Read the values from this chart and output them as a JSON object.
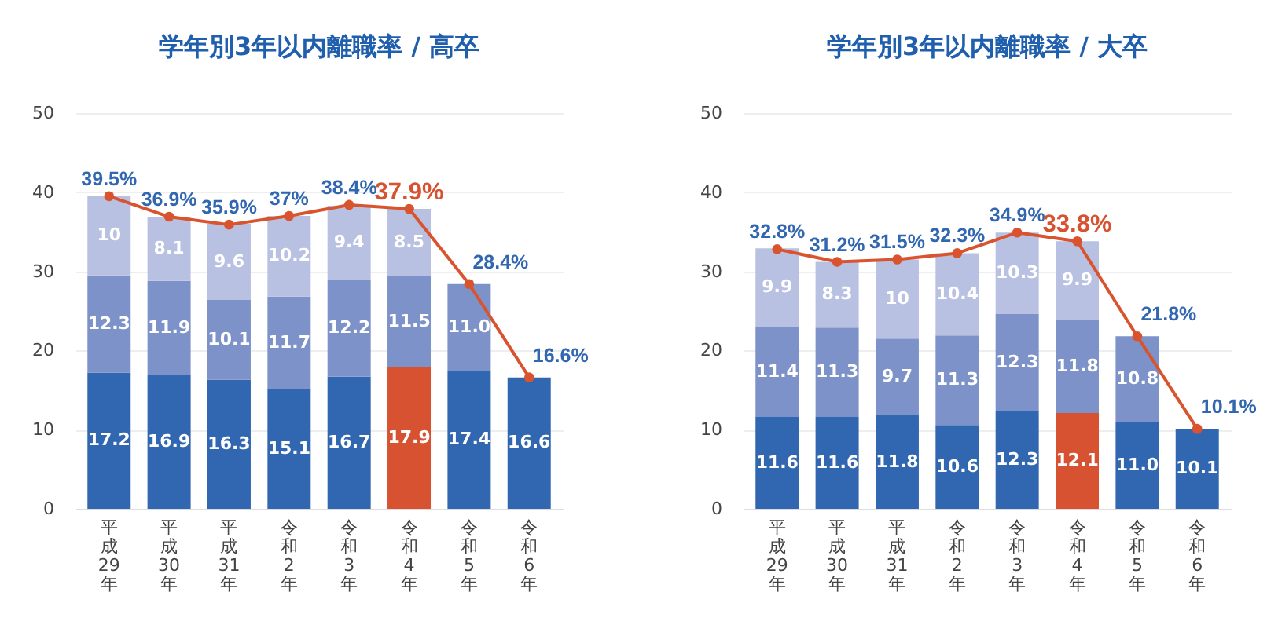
{
  "chart_data": [
    {
      "type": "bar",
      "title": "学年別3年以内離職率 / 高卒",
      "categories": [
        "平成29年",
        "平成30年",
        "平成31年",
        "令和2年",
        "令和3年",
        "令和4年",
        "令和5年",
        "令和6年"
      ],
      "stacked": true,
      "ylim": [
        0,
        50
      ],
      "yticks": [
        0,
        10,
        20,
        30,
        40,
        50
      ],
      "grid": "y",
      "marker": "circle",
      "series": [
        {
          "color": "#3166b0",
          "colors": [
            "#3166b0",
            "#3166b0",
            "#3166b0",
            "#3166b0",
            "#3166b0",
            "#d65230",
            "#3166b0",
            "#3166b0"
          ],
          "values": [
            17.2,
            16.9,
            16.3,
            15.1,
            16.7,
            17.9,
            17.4,
            16.6
          ],
          "value_labels": [
            "17.2",
            "16.9",
            "16.3",
            "15.1",
            "16.7",
            "17.9",
            "17.4",
            "16.6"
          ]
        },
        {
          "color": "#7c92c8",
          "values": [
            12.3,
            11.9,
            10.1,
            11.7,
            12.2,
            11.5,
            11.0,
            null
          ],
          "value_labels": [
            "12.3",
            "11.9",
            "10.1",
            "11.7",
            "12.2",
            "11.5",
            "11.0",
            null
          ]
        },
        {
          "color": "#b9c1e2",
          "values": [
            10,
            8.1,
            9.6,
            10.2,
            9.4,
            8.5,
            null,
            null
          ],
          "value_labels": [
            "10",
            "8.1",
            "9.6",
            "10.2",
            "9.4",
            "8.5",
            null,
            null
          ]
        },
        {
          "type": "line",
          "color": "#d9542e",
          "values": [
            39.5,
            36.9,
            35.9,
            37,
            38.4,
            37.9,
            28.4,
            16.6
          ],
          "value_labels": [
            "39.5%",
            "36.9%",
            "35.9%",
            "37%",
            "38.4%",
            "37.9%",
            "28.4%",
            "16.6%"
          ]
        }
      ]
    },
    {
      "type": "bar",
      "title": "学年別3年以内離職率 / 大卒",
      "categories": [
        "平成29年",
        "平成30年",
        "平成31年",
        "令和2年",
        "令和3年",
        "令和4年",
        "令和5年",
        "令和6年"
      ],
      "stacked": true,
      "ylim": [
        0,
        50
      ],
      "yticks": [
        0,
        10,
        20,
        30,
        40,
        50
      ],
      "grid": "y",
      "marker": "circle",
      "series": [
        {
          "color": "#3166b0",
          "colors": [
            "#3166b0",
            "#3166b0",
            "#3166b0",
            "#3166b0",
            "#3166b0",
            "#d65230",
            "#3166b0",
            "#3166b0"
          ],
          "values": [
            11.6,
            11.6,
            11.8,
            10.6,
            12.3,
            12.1,
            11.0,
            10.1
          ],
          "value_labels": [
            "11.6",
            "11.6",
            "11.8",
            "10.6",
            "12.3",
            "12.1",
            "11.0",
            "10.1"
          ]
        },
        {
          "color": "#7c92c8",
          "values": [
            11.4,
            11.3,
            9.7,
            11.3,
            12.3,
            11.8,
            10.8,
            null
          ],
          "value_labels": [
            "11.4",
            "11.3",
            "9.7",
            "11.3",
            "12.3",
            "11.8",
            "10.8",
            null
          ]
        },
        {
          "color": "#b9c1e2",
          "values": [
            9.9,
            8.3,
            10,
            10.4,
            10.3,
            9.9,
            null,
            null
          ],
          "value_labels": [
            "9.9",
            "8.3",
            "10",
            "10.4",
            "10.3",
            "9.9",
            null,
            null
          ]
        },
        {
          "type": "line",
          "color": "#d9542e",
          "values": [
            32.8,
            31.2,
            31.5,
            32.3,
            34.9,
            33.8,
            21.8,
            10.1
          ],
          "value_labels": [
            "32.8%",
            "31.2%",
            "31.5%",
            "32.3%",
            "34.9%",
            "33.8%",
            "21.8%",
            "10.1%"
          ]
        }
      ]
    }
  ]
}
